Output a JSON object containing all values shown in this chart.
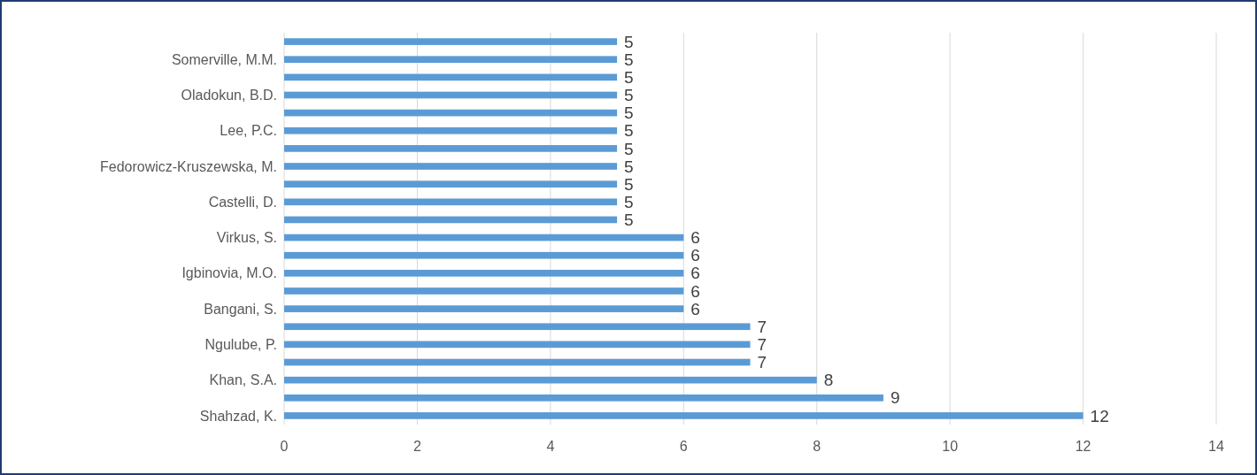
{
  "chart_data": {
    "type": "bar",
    "orientation": "horizontal",
    "categories": [
      null,
      "Somerville, M.M.",
      null,
      "Oladokun, B.D.",
      null,
      "Lee, P.C.",
      null,
      "Fedorowicz-Kruszewska, M.",
      null,
      "Castelli, D.",
      null,
      "Virkus, S.",
      null,
      "Igbinovia, M.O.",
      null,
      "Bangani, S.",
      null,
      "Ngulube, P.",
      null,
      "Khan, S.A.",
      null,
      "Shahzad, K."
    ],
    "values": [
      5,
      5,
      5,
      5,
      5,
      5,
      5,
      5,
      5,
      5,
      5,
      6,
      6,
      6,
      6,
      6,
      7,
      7,
      7,
      8,
      9,
      12
    ],
    "color": "#5b9bd5",
    "xlim": [
      0,
      14
    ],
    "xticks": [
      0,
      2,
      4,
      6,
      8,
      10,
      12,
      14
    ],
    "grid": "x",
    "data_labels": true
  }
}
